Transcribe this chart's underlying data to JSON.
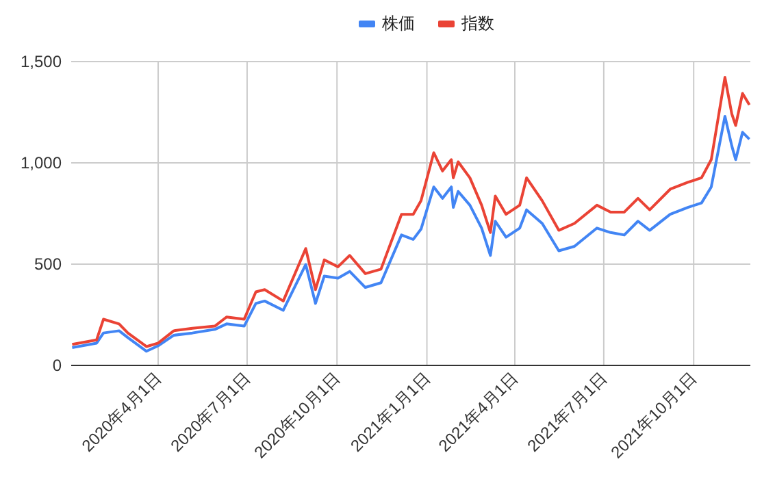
{
  "chart_data": {
    "type": "line",
    "legend": "top",
    "grid": true,
    "line_style": "solid",
    "marker": "none",
    "x": [
      "2020-01-04",
      "2020-01-29",
      "2020-02-05",
      "2020-02-21",
      "2020-03-01",
      "2020-03-20",
      "2020-04-01",
      "2020-04-17",
      "2020-05-06",
      "2020-05-29",
      "2020-06-10",
      "2020-06-28",
      "2020-07-10",
      "2020-07-19",
      "2020-08-07",
      "2020-08-30",
      "2020-09-09",
      "2020-09-18",
      "2020-10-02",
      "2020-10-14",
      "2020-10-30",
      "2020-11-15",
      "2020-12-06",
      "2020-12-18",
      "2020-12-26",
      "2021-01-08",
      "2021-01-17",
      "2021-01-26",
      "2021-01-28",
      "2021-02-02",
      "2021-02-14",
      "2021-02-26",
      "2021-03-07",
      "2021-03-12",
      "2021-03-23",
      "2021-04-06",
      "2021-04-13",
      "2021-04-29",
      "2021-05-16",
      "2021-06-01",
      "2021-06-24",
      "2021-07-08",
      "2021-07-22",
      "2021-08-05",
      "2021-08-17",
      "2021-09-07",
      "2021-09-25",
      "2021-10-09",
      "2021-10-19",
      "2021-11-02",
      "2021-11-09",
      "2021-11-13",
      "2021-11-20",
      "2021-11-27"
    ],
    "series": [
      {
        "name": "株価",
        "color": "#4285f4",
        "values": [
          88,
          110,
          160,
          171,
          137,
          70,
          97,
          149,
          160,
          178,
          205,
          194,
          306,
          318,
          272,
          498,
          306,
          441,
          431,
          464,
          385,
          408,
          644,
          622,
          673,
          881,
          825,
          881,
          780,
          859,
          791,
          678,
          543,
          712,
          633,
          678,
          768,
          701,
          566,
          588,
          678,
          656,
          644,
          712,
          667,
          746,
          780,
          802,
          881,
          1230,
          1084,
          1016,
          1151,
          1117
        ]
      },
      {
        "name": "指数",
        "color": "#ea4335",
        "values": [
          104,
          126,
          228,
          205,
          160,
          93,
          110,
          171,
          183,
          194,
          239,
          228,
          363,
          374,
          318,
          577,
          374,
          521,
          487,
          543,
          453,
          475,
          746,
          746,
          813,
          1050,
          960,
          1016,
          926,
          1005,
          926,
          791,
          656,
          836,
          746,
          791,
          926,
          813,
          667,
          701,
          791,
          757,
          757,
          825,
          768,
          870,
          904,
          926,
          1016,
          1422,
          1242,
          1185,
          1343,
          1286
        ]
      }
    ],
    "xlim": [
      "2020-01-03",
      "2021-11-28"
    ],
    "xticks": [
      {
        "value": "2020-04-01",
        "label": "2020年4月1日"
      },
      {
        "value": "2020-07-01",
        "label": "2020年7月1日"
      },
      {
        "value": "2020-10-01",
        "label": "2020年10月1日"
      },
      {
        "value": "2021-01-01",
        "label": "2021年1月1日"
      },
      {
        "value": "2021-04-01",
        "label": "2021年4月1日"
      },
      {
        "value": "2021-07-01",
        "label": "2021年7月1日"
      },
      {
        "value": "2021-10-01",
        "label": "2021年10月1日"
      }
    ],
    "ylim": [
      0,
      1500
    ],
    "yticks": [
      0,
      500,
      {
        "value": 1000,
        "label": "1,000"
      },
      {
        "value": 1500,
        "label": "1,500"
      }
    ]
  }
}
